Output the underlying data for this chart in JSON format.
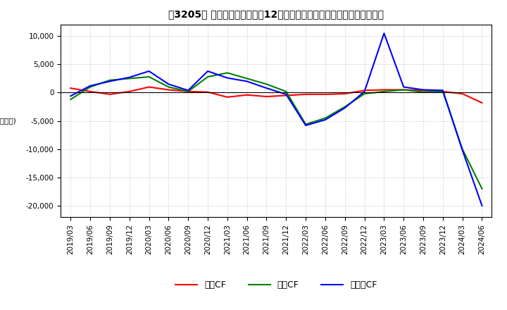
{
  "title": "［3205］ キャッシュフローの12か月移動合計の対前年同期増減額の推移",
  "ylabel": "(百万円)",
  "ylim": [
    -22000,
    12000
  ],
  "yticks": [
    -20000,
    -15000,
    -10000,
    -5000,
    0,
    5000,
    10000
  ],
  "legend_labels": [
    "営業CF",
    "投資CF",
    "フリーCF"
  ],
  "legend_colors": [
    "#ff0000",
    "#008000",
    "#0000ff"
  ],
  "dates": [
    "2019/03",
    "2019/06",
    "2019/09",
    "2019/12",
    "2020/03",
    "2020/06",
    "2020/09",
    "2020/12",
    "2021/03",
    "2021/06",
    "2021/09",
    "2021/12",
    "2022/03",
    "2022/06",
    "2022/09",
    "2022/12",
    "2023/03",
    "2023/06",
    "2023/09",
    "2023/12",
    "2024/03",
    "2024/06"
  ],
  "operating_cf": [
    800,
    200,
    -300,
    200,
    1000,
    500,
    200,
    100,
    -800,
    -400,
    -700,
    -500,
    -300,
    -300,
    -200,
    400,
    500,
    500,
    400,
    200,
    -200,
    -1800
  ],
  "investing_cf": [
    -1200,
    1000,
    2200,
    2500,
    2800,
    1000,
    200,
    2800,
    3500,
    2500,
    1500,
    200,
    -5600,
    -4500,
    -2500,
    -200,
    200,
    500,
    100,
    200,
    -10000,
    -17000
  ],
  "free_cf": [
    -600,
    1200,
    2000,
    2700,
    3800,
    1500,
    400,
    3800,
    2600,
    2000,
    800,
    -300,
    -5800,
    -4800,
    -2700,
    200,
    10500,
    1000,
    500,
    400,
    -10200,
    -20000
  ],
  "background_color": "#ffffff",
  "grid_color": "#aaaaaa",
  "title_fontsize": 10,
  "axis_fontsize": 7.5
}
